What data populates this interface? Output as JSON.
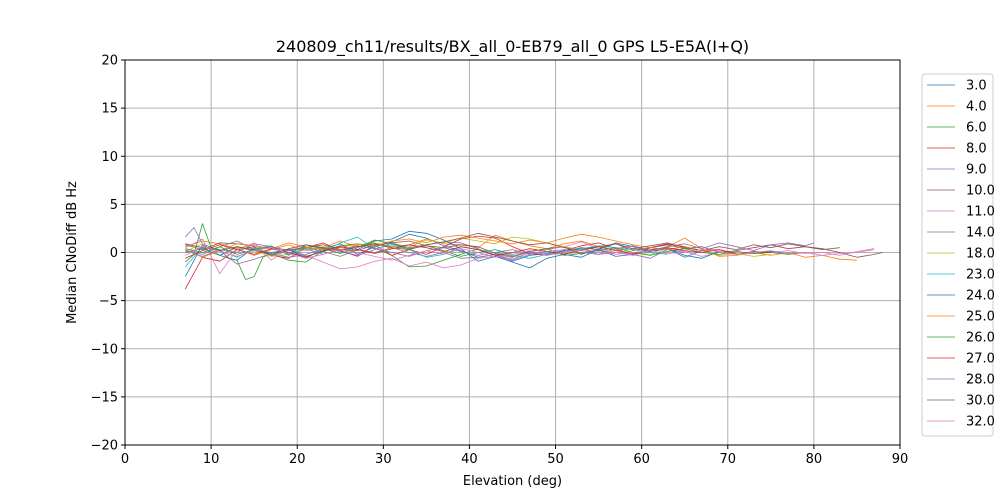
{
  "chart_data": {
    "type": "line",
    "title": "240809_ch11/results/BX_all_0-EB79_all_0 GPS L5-E5A(I+Q)",
    "xlabel": "Elevation (deg)",
    "ylabel": "Median CNoDiff dB Hz",
    "xlim": [
      0,
      90
    ],
    "ylim": [
      -20,
      20
    ],
    "xticks": [
      0,
      10,
      20,
      30,
      40,
      50,
      60,
      70,
      80,
      90
    ],
    "yticks": [
      -20,
      -15,
      -10,
      -5,
      0,
      5,
      10,
      15,
      20
    ],
    "grid": true,
    "legend_position": "right-outside",
    "series": [
      {
        "name": "3.0",
        "color": "#1f77b4",
        "x": [
          7,
          9,
          11,
          13,
          15,
          17,
          19,
          21,
          23,
          25,
          27,
          29,
          31,
          33,
          35,
          37,
          39,
          41,
          43,
          45,
          47,
          49,
          51,
          53,
          55,
          57,
          59,
          61,
          63,
          65,
          67,
          69,
          71,
          73,
          75,
          77,
          79
        ],
        "y": [
          -2.5,
          0.8,
          -0.3,
          -0.8,
          0.5,
          -0.2,
          0.3,
          -0.6,
          0.4,
          0.9,
          -0.2,
          0.6,
          1.1,
          1.9,
          1.5,
          0.7,
          0.2,
          -0.5,
          -0.2,
          -0.9,
          -0.3,
          -0.1,
          0.2,
          0.5,
          0.3,
          -0.4,
          -0.2,
          0.1,
          0.4,
          -0.5,
          0.2,
          0.3,
          -0.2,
          0.0,
          0.1,
          -0.1,
          0.0
        ]
      },
      {
        "name": "4.0",
        "color": "#ff7f0e",
        "x": [
          7,
          9,
          11,
          13,
          15,
          17,
          19,
          21,
          23,
          25,
          27,
          29,
          31,
          33,
          35,
          37,
          39,
          41,
          43,
          45,
          47,
          49,
          51,
          53,
          55,
          57,
          59,
          61,
          63,
          65,
          67,
          69,
          71,
          73,
          75,
          77,
          79,
          81,
          83,
          85
        ],
        "y": [
          0.6,
          1.2,
          0.9,
          0.4,
          -0.3,
          0.3,
          0.8,
          0.2,
          0.5,
          1.2,
          0.6,
          1.0,
          0.6,
          0.8,
          1.4,
          0.9,
          0.8,
          0.5,
          1.8,
          1.2,
          0.7,
          0.4,
          0.9,
          1.2,
          0.6,
          0.2,
          0.4,
          0.2,
          0.6,
          1.5,
          0.4,
          -0.4,
          -0.3,
          0.0,
          -0.3,
          0.0,
          -0.5,
          -0.3,
          -0.7,
          -0.8
        ]
      },
      {
        "name": "6.0",
        "color": "#2ca02c",
        "x": [
          7,
          8,
          9,
          10,
          11,
          12,
          13,
          14,
          15,
          16,
          17,
          19,
          21,
          23,
          25,
          27,
          29,
          31,
          33,
          35,
          37,
          39,
          41
        ],
        "y": [
          -1.0,
          -0.2,
          3.0,
          0.5,
          0.3,
          -0.6,
          -0.8,
          -2.8,
          -2.5,
          -0.5,
          -0.1,
          -0.8,
          -1.0,
          0.2,
          0.7,
          0.9,
          0.5,
          -0.3,
          -1.5,
          -1.4,
          -0.8,
          -0.2,
          0.4
        ]
      },
      {
        "name": "8.0",
        "color": "#d62728",
        "x": [
          7,
          9,
          11,
          13,
          15,
          17,
          19,
          21,
          23,
          25,
          27,
          29,
          31,
          33,
          35,
          37,
          39,
          41,
          43,
          45,
          47,
          49,
          51,
          53,
          55,
          57,
          59,
          61,
          63,
          65,
          67,
          69,
          71
        ],
        "y": [
          -3.8,
          -0.5,
          -0.9,
          0.3,
          0.6,
          -0.3,
          -0.6,
          0.5,
          1.0,
          0.2,
          -0.4,
          0.8,
          -0.3,
          0.3,
          -0.2,
          0.6,
          1.4,
          1.7,
          1.5,
          0.6,
          -0.1,
          -0.3,
          0.2,
          0.7,
          1.0,
          0.4,
          -0.3,
          0.5,
          0.9,
          0.6,
          0.2,
          0.3,
          -0.1
        ]
      },
      {
        "name": "9.0",
        "color": "#9467bd",
        "x": [
          7,
          8,
          9,
          11,
          13,
          15,
          17,
          19,
          21,
          23,
          25,
          27,
          29,
          31,
          33,
          35,
          37,
          39,
          41,
          43,
          45,
          47,
          49,
          51,
          53,
          55,
          57,
          59,
          61,
          63,
          65
        ],
        "y": [
          1.6,
          2.6,
          0.9,
          0.2,
          -1.2,
          -0.7,
          -0.1,
          -0.5,
          -0.2,
          0.4,
          0.1,
          -0.3,
          0.3,
          1.0,
          0.5,
          0.8,
          1.1,
          1.0,
          0.4,
          -0.3,
          -0.7,
          0.0,
          -0.3,
          0.1,
          0.4,
          -0.2,
          0.0,
          -0.2,
          -0.6,
          0.3,
          0.0
        ]
      },
      {
        "name": "10.0",
        "color": "#8c564b",
        "x": [
          7,
          9,
          11,
          13,
          15,
          17,
          19,
          21,
          23,
          25,
          27,
          29,
          31,
          33,
          35,
          37,
          39,
          41,
          43,
          45,
          47,
          49,
          51,
          53,
          55,
          57,
          59,
          61,
          63,
          65,
          67,
          69,
          71,
          73,
          75,
          77,
          79,
          81,
          83,
          85,
          87,
          88
        ],
        "y": [
          0.8,
          0.3,
          1.0,
          0.9,
          0.7,
          0.4,
          0.3,
          0.5,
          0.8,
          0.3,
          0.2,
          0.8,
          1.0,
          1.2,
          0.7,
          0.5,
          0.8,
          0.6,
          -0.1,
          -0.4,
          0.1,
          0.4,
          0.6,
          -0.2,
          0.4,
          0.9,
          0.2,
          0.5,
          0.8,
          0.4,
          0.6,
          0.0,
          0.2,
          0.5,
          0.8,
          0.4,
          0.6,
          0.4,
          0.0,
          -0.5,
          -0.2,
          0.0
        ]
      },
      {
        "name": "11.0",
        "color": "#e377c2",
        "x": [
          7,
          9,
          11,
          13,
          15,
          17,
          19,
          21,
          23,
          25,
          27,
          29,
          31,
          33,
          35,
          37,
          39,
          41,
          43,
          45,
          47,
          49,
          51,
          53,
          55,
          57,
          59,
          61,
          63,
          65,
          67,
          69,
          71,
          73,
          75,
          77,
          79,
          81,
          83,
          85,
          87
        ],
        "y": [
          0.5,
          1.4,
          -2.2,
          0.3,
          1.0,
          -0.8,
          0.4,
          -0.3,
          -1.0,
          -1.7,
          -1.5,
          -0.9,
          -0.6,
          -1.4,
          -1.0,
          -1.6,
          -1.3,
          -0.6,
          -0.4,
          -0.8,
          -0.2,
          0.3,
          0.6,
          1.1,
          0.4,
          0.0,
          -0.3,
          0.2,
          0.4,
          0.1,
          -0.4,
          0.0,
          -0.2,
          -0.1,
          0.0,
          0.2,
          -0.1,
          0.0,
          -0.3,
          0.1,
          0.4
        ]
      },
      {
        "name": "14.0",
        "color": "#7f7f7f",
        "x": [
          7,
          9,
          11,
          13,
          15,
          17,
          19,
          21,
          23,
          25,
          27,
          29,
          31,
          33,
          35,
          37,
          39,
          41,
          43,
          45,
          47,
          49,
          51,
          53,
          55,
          57
        ],
        "y": [
          0.2,
          -0.2,
          0.6,
          1.2,
          0.3,
          -0.3,
          0.2,
          0.6,
          0.1,
          -0.4,
          0.3,
          0.0,
          0.5,
          0.0,
          -0.4,
          0.0,
          -0.6,
          -0.5,
          -0.2,
          -0.5,
          0.1,
          -0.2,
          -0.1,
          0.0,
          0.3,
          -0.2
        ]
      },
      {
        "name": "18.0",
        "color": "#bcbd22",
        "x": [
          7,
          9,
          11,
          13,
          15,
          17,
          19,
          21,
          23,
          25,
          27,
          29,
          31,
          33,
          35,
          37,
          39,
          41,
          43,
          45,
          47,
          49,
          51,
          53,
          55,
          57,
          59,
          61,
          63,
          65,
          67,
          69,
          71,
          73,
          75
        ],
        "y": [
          0.1,
          0.9,
          -0.3,
          0.5,
          0.2,
          -0.4,
          -0.2,
          0.3,
          0.6,
          0.2,
          0.8,
          1.0,
          0.4,
          0.6,
          1.3,
          1.0,
          1.5,
          1.2,
          0.9,
          1.6,
          1.4,
          1.0,
          0.6,
          0.3,
          0.7,
          0.2,
          0.0,
          -0.2,
          0.3,
          0.6,
          0.2,
          -0.3,
          -0.1,
          -0.4,
          -0.2
        ]
      },
      {
        "name": "23.0",
        "color": "#17becf",
        "x": [
          7,
          9,
          11,
          13,
          15,
          17,
          19,
          21,
          23,
          25,
          27,
          29,
          31,
          33,
          35,
          37,
          39,
          41,
          43,
          45,
          47,
          49,
          51,
          53,
          55,
          57,
          59,
          61,
          63
        ],
        "y": [
          -1.5,
          0.6,
          0.2,
          -0.5,
          0.4,
          0.7,
          -0.3,
          0.5,
          0.1,
          1.0,
          1.6,
          0.4,
          0.8,
          0.3,
          -0.5,
          -0.2,
          0.6,
          0.3,
          0.0,
          -0.3,
          -0.6,
          -0.2,
          0.1,
          0.4,
          0.7,
          0.5,
          0.3,
          0.0,
          -0.2
        ]
      },
      {
        "name": "24.0",
        "color": "#1f77b4",
        "x": [
          7,
          9,
          11,
          13,
          15,
          17,
          19,
          21,
          23,
          25,
          27,
          29,
          31,
          33,
          35,
          37,
          39,
          41,
          43,
          45,
          47,
          49,
          51,
          53,
          55,
          57,
          59,
          61,
          63,
          65,
          67,
          69,
          71
        ],
        "y": [
          0.0,
          0.4,
          -0.3,
          0.6,
          0.2,
          0.0,
          0.3,
          -0.4,
          0.1,
          0.6,
          0.3,
          1.2,
          1.4,
          2.2,
          2.0,
          1.3,
          0.4,
          -0.9,
          -0.4,
          -1.0,
          -1.6,
          -0.6,
          -0.2,
          -0.5,
          0.3,
          1.0,
          0.6,
          0.1,
          0.4,
          -0.3,
          -0.6,
          0.1,
          -0.2
        ]
      },
      {
        "name": "25.0",
        "color": "#ff7f0e",
        "x": [
          7,
          9,
          11,
          13,
          15,
          17,
          19,
          21,
          23,
          25,
          27,
          29,
          31,
          33,
          35,
          37,
          39,
          41,
          43,
          45,
          47,
          49,
          51,
          53,
          55,
          57,
          59,
          61,
          63,
          65,
          67
        ],
        "y": [
          0.3,
          -0.5,
          0.2,
          0.9,
          0.7,
          0.4,
          1.0,
          0.6,
          0.3,
          0.5,
          0.9,
          0.7,
          1.2,
          1.4,
          1.0,
          1.6,
          1.8,
          1.5,
          1.2,
          0.9,
          1.3,
          1.0,
          1.5,
          1.9,
          1.6,
          1.2,
          0.8,
          0.5,
          0.3,
          0.6,
          0.2
        ]
      },
      {
        "name": "26.0",
        "color": "#2ca02c",
        "x": [
          7,
          9,
          11,
          13,
          15,
          17,
          19,
          21,
          23,
          25,
          27,
          29,
          31,
          33,
          35,
          37,
          39,
          41,
          43,
          45,
          47,
          49,
          51,
          53,
          55,
          57,
          59,
          61,
          63,
          65,
          67,
          69,
          71,
          73,
          75,
          77,
          79
        ],
        "y": [
          0.4,
          0.0,
          0.6,
          -0.2,
          0.3,
          0.6,
          -0.2,
          0.8,
          0.4,
          -0.1,
          0.5,
          1.3,
          0.9,
          0.4,
          0.7,
          0.2,
          -0.4,
          0.0,
          0.3,
          -0.2,
          0.1,
          0.4,
          -0.3,
          -0.1,
          0.2,
          0.5,
          0.0,
          -0.3,
          0.1,
          0.4,
          0.0,
          -0.2,
          0.1,
          -0.1,
          0.0,
          -0.2,
          0.0
        ]
      },
      {
        "name": "27.0",
        "color": "#d62728",
        "x": [
          7,
          9,
          11,
          13,
          15,
          17,
          19,
          21,
          23,
          25,
          27,
          29,
          31,
          33,
          35,
          37,
          39,
          41,
          43,
          45,
          47,
          49,
          51,
          53,
          55,
          57,
          59,
          61,
          63,
          65,
          67,
          69,
          71,
          73,
          75
        ],
        "y": [
          -0.6,
          0.2,
          0.8,
          0.3,
          -0.2,
          0.4,
          0.0,
          -0.5,
          0.2,
          0.6,
          0.3,
          -0.1,
          0.4,
          0.8,
          0.5,
          0.1,
          0.6,
          0.3,
          -0.3,
          0.0,
          0.4,
          0.1,
          -0.2,
          0.3,
          0.6,
          0.2,
          -0.1,
          0.3,
          0.5,
          0.2,
          0.0,
          0.3,
          -0.2,
          0.1,
          0.0
        ]
      },
      {
        "name": "28.0",
        "color": "#9467bd",
        "x": [
          7,
          9,
          11,
          13,
          15,
          17,
          19,
          21,
          23,
          25,
          27,
          29,
          31,
          33,
          35,
          37,
          39,
          41,
          43,
          45,
          47,
          49,
          51,
          53,
          55,
          57,
          59,
          61,
          63,
          65,
          67,
          69,
          71,
          73,
          75,
          77,
          79,
          80
        ],
        "y": [
          0.2,
          -0.4,
          0.3,
          0.0,
          0.9,
          0.6,
          0.2,
          0.4,
          -0.2,
          0.3,
          0.7,
          0.4,
          0.0,
          -0.4,
          0.2,
          0.5,
          0.1,
          -0.3,
          0.0,
          0.3,
          -0.2,
          0.1,
          0.3,
          0.0,
          -0.2,
          0.4,
          0.7,
          0.2,
          0.6,
          0.9,
          0.4,
          1.0,
          0.6,
          0.2,
          0.8,
          1.0,
          0.7,
          1.0
        ]
      },
      {
        "name": "30.0",
        "color": "#8c564b",
        "x": [
          7,
          9,
          11,
          13,
          15,
          17,
          19,
          21,
          23,
          25,
          27,
          29,
          31,
          33,
          35,
          37,
          39,
          41,
          43,
          45,
          47,
          49,
          51,
          53,
          55,
          57,
          59,
          61,
          63,
          65,
          67,
          69,
          71,
          73,
          75,
          77,
          79,
          81,
          83
        ],
        "y": [
          0.9,
          0.5,
          0.2,
          0.6,
          0.3,
          -0.2,
          0.4,
          0.8,
          0.5,
          0.2,
          0.6,
          0.9,
          0.5,
          0.3,
          0.8,
          1.1,
          1.5,
          2.0,
          1.6,
          1.2,
          0.8,
          1.0,
          0.5,
          0.2,
          0.6,
          0.9,
          0.4,
          0.7,
          1.0,
          0.5,
          0.2,
          0.6,
          0.3,
          0.8,
          0.5,
          0.9,
          0.6,
          0.3,
          0.5
        ]
      },
      {
        "name": "32.0",
        "color": "#e377c2",
        "x": [
          7,
          9,
          11,
          13,
          15,
          17,
          19,
          21,
          23,
          25,
          27,
          29,
          31,
          33,
          35,
          37,
          39,
          41,
          43,
          45,
          47,
          49,
          51,
          53,
          55,
          57,
          59,
          61,
          63,
          65,
          67,
          69,
          71,
          73,
          75,
          77,
          79,
          81,
          83,
          85,
          87
        ],
        "y": [
          -0.3,
          0.6,
          0.1,
          -0.4,
          0.2,
          0.5,
          -0.1,
          -0.6,
          -0.2,
          0.3,
          0.0,
          -0.4,
          -0.8,
          -0.3,
          0.2,
          -0.2,
          0.4,
          0.0,
          -0.5,
          -0.2,
          0.2,
          -0.3,
          0.0,
          0.3,
          0.1,
          -0.2,
          0.0,
          0.2,
          -0.1,
          0.0,
          0.3,
          0.1,
          -0.2,
          0.0,
          0.2,
          -0.1,
          0.0,
          -0.3,
          -0.1,
          0.0,
          0.3
        ]
      }
    ]
  }
}
